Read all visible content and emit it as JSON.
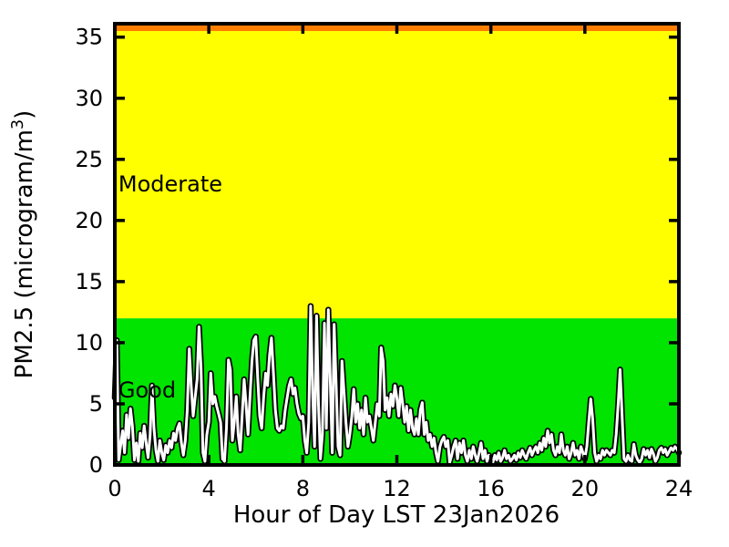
{
  "figure": {
    "background": "#FFFFFF"
  },
  "labels": {
    "xlabel": "Hour of Day LST 23Jan2026",
    "ylabel_prefix": "PM2.5 (microgram/m",
    "ylabel_sup": "3",
    "ylabel_suffix": ")"
  },
  "chart_data": {
    "type": "line",
    "title": "",
    "xlabel": "Hour of Day LST 23Jan2026",
    "ylabel": "PM2.5 (microgram/m^3)",
    "xlim": [
      0,
      24
    ],
    "ylim": [
      0,
      36.1
    ],
    "x_ticks": [
      0,
      4,
      8,
      12,
      16,
      20,
      24
    ],
    "y_ticks": [
      0,
      5,
      10,
      15,
      20,
      25,
      30,
      35
    ],
    "grid": false,
    "legend": "none",
    "axis_color": "#000000",
    "tick_label_color": "#000000",
    "bands": [
      {
        "label": "Good",
        "from": 0,
        "to": 12,
        "color": "#00E400",
        "label_x": 0.15,
        "label_y": 6.1
      },
      {
        "label": "Moderate",
        "from": 12,
        "to": 35.5,
        "color": "#FFFF00",
        "label_x": 0.15,
        "label_y": 23.0
      },
      {
        "label": "",
        "from": 35.5,
        "to": 36.1,
        "color": "#FF7E00"
      }
    ],
    "series": [
      {
        "name": "PM2.5",
        "color": "#FFFFFF",
        "edge_color": "#000000",
        "x_start_hour": 0,
        "x_step_hours": 0.0833333,
        "values": [
          5.5,
          10.2,
          0.4,
          1.6,
          2.8,
          1.0,
          4.1,
          2.2,
          4.6,
          3.2,
          0.4,
          1.8,
          0.3,
          2.6,
          1.4,
          3.2,
          1.8,
          0.6,
          2.4,
          6.5,
          3.0,
          1.2,
          0.3,
          2.0,
          1.0,
          0.4,
          1.6,
          1.0,
          2.0,
          1.4,
          2.6,
          2.0,
          3.0,
          3.4,
          1.8,
          0.8,
          2.0,
          4.5,
          9.5,
          6.5,
          4.0,
          5.5,
          7.0,
          11.3,
          8.0,
          1.0,
          0.3,
          2.5,
          3.5,
          7.5,
          5.0,
          5.6,
          4.8,
          4.2,
          3.5,
          0.5,
          0.3,
          3.0,
          8.6,
          7.8,
          2.0,
          3.5,
          5.6,
          2.5,
          1.2,
          4.0,
          7.0,
          5.0,
          2.5,
          5.5,
          8.5,
          10.2,
          10.5,
          7.0,
          4.0,
          3.0,
          5.5,
          7.5,
          6.5,
          9.0,
          10.4,
          7.5,
          4.5,
          3.0,
          2.8,
          3.2,
          3.0,
          4.5,
          5.5,
          6.5,
          7.0,
          5.8,
          6.3,
          5.0,
          4.2,
          3.8,
          4.0,
          2.0,
          1.0,
          3.5,
          13.0,
          6.0,
          1.5,
          12.2,
          5.0,
          0.5,
          2.5,
          11.6,
          3.0,
          12.7,
          7.0,
          1.0,
          11.5,
          6.5,
          1.5,
          0.8,
          8.5,
          6.0,
          3.5,
          1.5,
          2.5,
          4.0,
          6.2,
          3.5,
          5.0,
          3.0,
          4.5,
          2.5,
          5.5,
          3.5,
          4.0,
          3.0,
          2.0,
          3.5,
          5.0,
          4.0,
          9.6,
          8.5,
          4.5,
          5.5,
          4.0,
          5.8,
          4.8,
          6.5,
          5.5,
          4.0,
          6.3,
          5.0,
          3.5,
          4.8,
          2.8,
          4.5,
          3.0,
          2.5,
          3.8,
          2.5,
          4.5,
          5.1,
          2.5,
          3.5,
          2.0,
          2.5,
          1.5,
          2.2,
          1.0,
          0.3,
          1.5,
          2.0,
          2.3,
          1.5,
          2.0,
          0.2,
          0.8,
          1.5,
          2.0,
          0.5,
          1.8,
          1.0,
          2.0,
          0.8,
          0.3,
          1.2,
          0.5,
          1.5,
          0.8,
          0.3,
          1.0,
          1.8,
          0.5,
          1.2,
          0.3,
          0.8,
          0.5,
          0.2,
          0.8,
          0.4,
          1.0,
          0.3,
          0.6,
          1.2,
          0.5,
          0.8,
          0.3,
          0.5,
          0.8,
          0.4,
          1.0,
          0.6,
          1.2,
          0.8,
          0.5,
          1.0,
          1.4,
          0.8,
          1.2,
          1.5,
          1.0,
          1.8,
          1.2,
          2.2,
          1.5,
          2.8,
          1.8,
          2.5,
          1.2,
          0.8,
          1.5,
          1.0,
          2.5,
          1.2,
          0.8,
          1.5,
          0.5,
          1.0,
          1.8,
          0.8,
          1.2,
          0.5,
          1.5,
          1.0,
          0.5,
          1.5,
          3.5,
          5.4,
          3.8,
          1.0,
          0.3,
          0.8,
          0.5,
          1.2,
          0.8,
          1.2,
          1.0,
          0.8,
          1.2,
          1.0,
          2.5,
          5.0,
          7.8,
          4.0,
          0.5,
          0.3,
          0.8,
          0.4,
          0.3,
          1.7,
          0.8,
          0.4,
          0.2,
          0.5,
          1.3,
          0.8,
          1.2,
          0.6,
          1.3,
          0.9,
          0.3,
          0.6,
          1.2,
          1.4,
          1.0,
          1.3,
          0.8,
          1.1,
          1.4,
          1.2,
          1.5,
          1.3,
          1.0
        ]
      }
    ]
  }
}
